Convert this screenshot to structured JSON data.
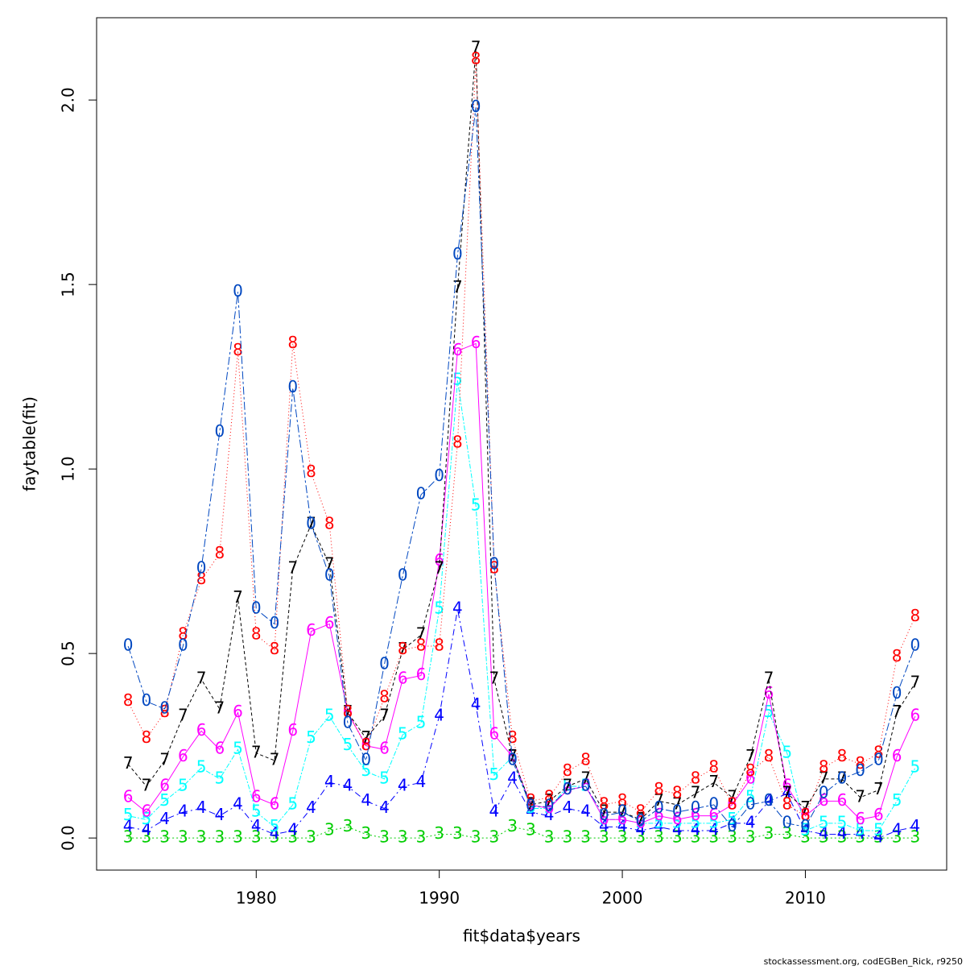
{
  "chart_data": {
    "type": "line",
    "xlabel": "fit$data$years",
    "ylabel": "faytable(fit)",
    "caption": "stockassessment.org, codEGBen_Rick, r9250",
    "x": [
      1973,
      1974,
      1975,
      1976,
      1977,
      1978,
      1979,
      1980,
      1981,
      1982,
      1983,
      1984,
      1985,
      1986,
      1987,
      1988,
      1989,
      1990,
      1991,
      1992,
      1993,
      1994,
      1995,
      1996,
      1997,
      1998,
      1999,
      2000,
      2001,
      2002,
      2003,
      2004,
      2005,
      2006,
      2007,
      2008,
      2009,
      2010,
      2011,
      2012,
      2013,
      2014,
      2015,
      2016
    ],
    "xlim": [
      1971.28,
      2017.72
    ],
    "xticks": [
      1980,
      1990,
      2000,
      2010
    ],
    "ylim": [
      -0.087,
      2.223
    ],
    "yticks": [
      {
        "value": 0,
        "label": "0.0"
      },
      0.5,
      {
        "value": 1,
        "label": "1.0"
      },
      1.5,
      {
        "value": 2,
        "label": "2.0"
      }
    ],
    "series": [
      {
        "name": "3",
        "color": "#00cd00",
        "values": [
          0,
          0,
          0,
          0,
          0,
          0,
          0,
          0,
          0,
          0,
          0,
          0.02,
          0.03,
          0.01,
          0,
          0,
          0,
          0.01,
          0.01,
          0,
          0,
          0.03,
          0.02,
          0,
          0,
          0,
          0,
          0,
          0,
          0,
          0,
          0,
          0,
          0,
          0,
          0.01,
          0.01,
          0,
          0,
          0,
          0,
          0,
          0,
          0
        ]
      },
      {
        "name": "4",
        "color": "#0000ff",
        "values": [
          0.03,
          0.02,
          0.05,
          0.07,
          0.08,
          0.06,
          0.09,
          0.03,
          0.01,
          0.02,
          0.08,
          0.15,
          0.14,
          0.1,
          0.08,
          0.14,
          0.15,
          0.33,
          0.62,
          0.36,
          0.07,
          0.16,
          0.07,
          0.06,
          0.08,
          0.07,
          0.03,
          0.03,
          0.02,
          0.03,
          0.02,
          0.02,
          0.02,
          0.04,
          0.04,
          0.1,
          0.12,
          0.02,
          0.01,
          0.01,
          0.01,
          0.0,
          0.02,
          0.03
        ]
      },
      {
        "name": "5",
        "color": "#00ffff",
        "values": [
          0.06,
          0.05,
          0.1,
          0.14,
          0.19,
          0.16,
          0.24,
          0.07,
          0.03,
          0.09,
          0.27,
          0.33,
          0.25,
          0.18,
          0.16,
          0.28,
          0.31,
          0.62,
          1.24,
          0.9,
          0.17,
          0.22,
          0.08,
          0.08,
          0.14,
          0.14,
          0.05,
          0.05,
          0.04,
          0.04,
          0.04,
          0.04,
          0.04,
          0.05,
          0.11,
          0.34,
          0.23,
          0.02,
          0.04,
          0.04,
          0.02,
          0.02,
          0.1,
          0.19
        ]
      },
      {
        "name": "6",
        "color": "#ff00ff",
        "values": [
          0.11,
          0.07,
          0.14,
          0.22,
          0.29,
          0.24,
          0.34,
          0.11,
          0.09,
          0.29,
          0.56,
          0.58,
          0.34,
          0.25,
          0.24,
          0.43,
          0.44,
          0.75,
          1.32,
          1.34,
          0.28,
          0.22,
          0.09,
          0.08,
          0.13,
          0.14,
          0.05,
          0.05,
          0.04,
          0.06,
          0.05,
          0.06,
          0.06,
          0.09,
          0.16,
          0.39,
          0.14,
          0.06,
          0.1,
          0.1,
          0.05,
          0.06,
          0.22,
          0.33
        ]
      },
      {
        "name": "7",
        "color": "#000000",
        "values": [
          0.2,
          0.14,
          0.21,
          0.33,
          0.43,
          0.35,
          0.65,
          0.23,
          0.21,
          0.73,
          0.85,
          0.74,
          0.34,
          0.27,
          0.33,
          0.51,
          0.55,
          0.73,
          1.49,
          2.14,
          0.43,
          0.22,
          0.09,
          0.1,
          0.14,
          0.16,
          0.07,
          0.07,
          0.05,
          0.1,
          0.09,
          0.12,
          0.15,
          0.11,
          0.22,
          0.43,
          0.12,
          0.08,
          0.16,
          0.16,
          0.11,
          0.13,
          0.34,
          0.42
        ]
      },
      {
        "name": "8",
        "color": "#ff0000",
        "values": [
          0.37,
          0.27,
          0.34,
          0.55,
          0.7,
          0.77,
          1.32,
          0.55,
          0.51,
          1.34,
          0.99,
          0.85,
          0.34,
          0.25,
          0.38,
          0.51,
          0.52,
          0.52,
          1.07,
          2.11,
          0.73,
          0.27,
          0.1,
          0.11,
          0.18,
          0.21,
          0.09,
          0.1,
          0.07,
          0.13,
          0.12,
          0.16,
          0.19,
          0.09,
          0.18,
          0.22,
          0.09,
          0.06,
          0.19,
          0.22,
          0.2,
          0.23,
          0.49,
          0.6
        ]
      },
      {
        "name": "0",
        "color": "#0047c0",
        "values": [
          0.52,
          0.37,
          0.35,
          0.52,
          0.73,
          1.1,
          1.48,
          0.62,
          0.58,
          1.22,
          0.85,
          0.71,
          0.31,
          0.21,
          0.47,
          0.71,
          0.93,
          0.98,
          1.58,
          1.98,
          0.74,
          0.21,
          0.085,
          0.085,
          0.13,
          0.14,
          0.06,
          0.07,
          0.045,
          0.08,
          0.07,
          0.08,
          0.09,
          0.03,
          0.09,
          0.1,
          0.04,
          0.03,
          0.12,
          0.16,
          0.18,
          0.21,
          0.39,
          0.52
        ]
      }
    ]
  }
}
